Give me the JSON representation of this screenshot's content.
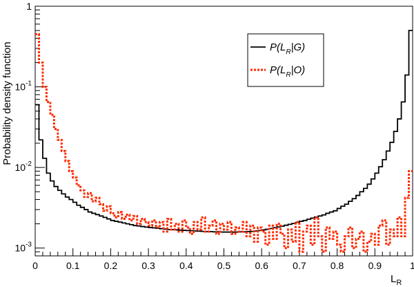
{
  "chart_data": {
    "type": "line",
    "xlabel": "L",
    "xlabel_sub": "R",
    "ylabel": "Probability density function",
    "xlim": [
      0,
      1
    ],
    "ylim": [
      0.0008,
      1
    ],
    "y_scale": "log",
    "grid": false,
    "legend_placement": "top-right",
    "x_ticks": [
      "0",
      "0.1",
      "0.2",
      "0.3",
      "0.4",
      "0.5",
      "0.6",
      "0.7",
      "0.8",
      "0.9",
      "1"
    ],
    "y_ticks": [
      {
        "value": 1,
        "mant": "1",
        "exp": ""
      },
      {
        "value": 0.1,
        "mant": "10",
        "exp": "-1"
      },
      {
        "value": 0.01,
        "mant": "10",
        "exp": "-2"
      },
      {
        "value": 0.001,
        "mant": "10",
        "exp": "-3"
      }
    ],
    "series": [
      {
        "name": "P(L_R|G)",
        "legend_main": "P(L",
        "legend_sub": "R",
        "legend_tail": "|G)",
        "color": "#000000",
        "style": "solid",
        "x": [
          0.005,
          0.015,
          0.025,
          0.035,
          0.045,
          0.055,
          0.065,
          0.075,
          0.085,
          0.095,
          0.105,
          0.115,
          0.125,
          0.135,
          0.145,
          0.155,
          0.165,
          0.175,
          0.185,
          0.195,
          0.205,
          0.215,
          0.225,
          0.235,
          0.245,
          0.255,
          0.265,
          0.275,
          0.285,
          0.295,
          0.305,
          0.315,
          0.325,
          0.335,
          0.345,
          0.355,
          0.365,
          0.375,
          0.385,
          0.395,
          0.405,
          0.415,
          0.425,
          0.435,
          0.445,
          0.455,
          0.465,
          0.475,
          0.485,
          0.495,
          0.505,
          0.515,
          0.525,
          0.535,
          0.545,
          0.555,
          0.565,
          0.575,
          0.585,
          0.595,
          0.605,
          0.615,
          0.625,
          0.635,
          0.645,
          0.655,
          0.665,
          0.675,
          0.685,
          0.695,
          0.705,
          0.715,
          0.725,
          0.735,
          0.745,
          0.755,
          0.765,
          0.775,
          0.785,
          0.795,
          0.805,
          0.815,
          0.825,
          0.835,
          0.845,
          0.855,
          0.865,
          0.875,
          0.885,
          0.895,
          0.905,
          0.915,
          0.925,
          0.935,
          0.945,
          0.955,
          0.965,
          0.975,
          0.985,
          0.995
        ],
        "y": [
          0.06,
          0.022,
          0.013,
          0.0085,
          0.0068,
          0.0058,
          0.0052,
          0.0047,
          0.0043,
          0.004,
          0.0037,
          0.0034,
          0.0032,
          0.003,
          0.0028,
          0.0027,
          0.0026,
          0.0025,
          0.0024,
          0.0023,
          0.0022,
          0.00215,
          0.0021,
          0.00205,
          0.002,
          0.00195,
          0.0019,
          0.00188,
          0.00185,
          0.00182,
          0.0018,
          0.00178,
          0.00176,
          0.00174,
          0.00172,
          0.0017,
          0.00169,
          0.00168,
          0.00167,
          0.00166,
          0.00165,
          0.00164,
          0.00163,
          0.00162,
          0.00161,
          0.0016,
          0.0016,
          0.00159,
          0.00159,
          0.00158,
          0.00158,
          0.00158,
          0.00158,
          0.00158,
          0.00159,
          0.00159,
          0.0016,
          0.00161,
          0.00163,
          0.00165,
          0.00168,
          0.00171,
          0.00175,
          0.00179,
          0.00183,
          0.00187,
          0.00192,
          0.00197,
          0.00202,
          0.00208,
          0.00215,
          0.0022,
          0.00228,
          0.00235,
          0.00243,
          0.0025,
          0.00258,
          0.0027,
          0.0028,
          0.0029,
          0.0031,
          0.0033,
          0.0035,
          0.0038,
          0.0041,
          0.0045,
          0.005,
          0.0055,
          0.0062,
          0.0072,
          0.0085,
          0.0102,
          0.0125,
          0.016,
          0.0205,
          0.028,
          0.04,
          0.065,
          0.14,
          0.5
        ]
      },
      {
        "name": "P(L_R|O)",
        "legend_main": "P(L",
        "legend_sub": "R",
        "legend_tail": "|O)",
        "color": "#ff2a00",
        "style": "dotted",
        "x": [
          0.005,
          0.015,
          0.025,
          0.035,
          0.045,
          0.055,
          0.065,
          0.075,
          0.085,
          0.095,
          0.105,
          0.115,
          0.125,
          0.135,
          0.145,
          0.155,
          0.165,
          0.175,
          0.185,
          0.195,
          0.205,
          0.215,
          0.225,
          0.235,
          0.245,
          0.255,
          0.265,
          0.275,
          0.285,
          0.295,
          0.305,
          0.315,
          0.325,
          0.335,
          0.345,
          0.355,
          0.365,
          0.375,
          0.385,
          0.395,
          0.405,
          0.415,
          0.425,
          0.435,
          0.445,
          0.455,
          0.465,
          0.475,
          0.485,
          0.495,
          0.505,
          0.515,
          0.525,
          0.535,
          0.545,
          0.555,
          0.565,
          0.575,
          0.585,
          0.595,
          0.605,
          0.615,
          0.625,
          0.635,
          0.645,
          0.655,
          0.665,
          0.675,
          0.685,
          0.695,
          0.705,
          0.715,
          0.725,
          0.735,
          0.745,
          0.755,
          0.765,
          0.775,
          0.785,
          0.795,
          0.805,
          0.815,
          0.825,
          0.835,
          0.845,
          0.855,
          0.865,
          0.875,
          0.885,
          0.895,
          0.905,
          0.915,
          0.925,
          0.935,
          0.945,
          0.955,
          0.965,
          0.975,
          0.985,
          0.995
        ],
        "y": [
          0.45,
          0.2,
          0.1,
          0.065,
          0.045,
          0.03,
          0.022,
          0.016,
          0.012,
          0.009,
          0.0075,
          0.006,
          0.0052,
          0.0043,
          0.0048,
          0.0038,
          0.0042,
          0.0035,
          0.0029,
          0.0033,
          0.0027,
          0.0024,
          0.0028,
          0.0023,
          0.0026,
          0.0022,
          0.0025,
          0.002,
          0.0023,
          0.0021,
          0.0019,
          0.0022,
          0.0018,
          0.0021,
          0.0016,
          0.0023,
          0.0017,
          0.002,
          0.0016,
          0.0022,
          0.0018,
          0.0015,
          0.0021,
          0.0017,
          0.0024,
          0.0016,
          0.0019,
          0.0022,
          0.0015,
          0.002,
          0.0017,
          0.0021,
          0.0015,
          0.0018,
          0.0016,
          0.0021,
          0.0014,
          0.0019,
          0.0012,
          0.0018,
          0.0016,
          0.0011,
          0.0019,
          0.0013,
          0.002,
          0.0015,
          0.001,
          0.0017,
          0.0012,
          0.0021,
          0.0009,
          0.0016,
          0.0019,
          0.0011,
          0.0024,
          0.0014,
          0.0009,
          0.0018,
          0.0013,
          0.0016,
          0.0011,
          0.0009,
          0.0014,
          0.0018,
          0.001,
          0.0013,
          0.0016,
          0.0009,
          0.0012,
          0.0015,
          0.0011,
          0.0019,
          0.0022,
          0.0011,
          0.0017,
          0.0014,
          0.0024,
          0.0014,
          0.0042,
          0.009
        ]
      }
    ]
  }
}
